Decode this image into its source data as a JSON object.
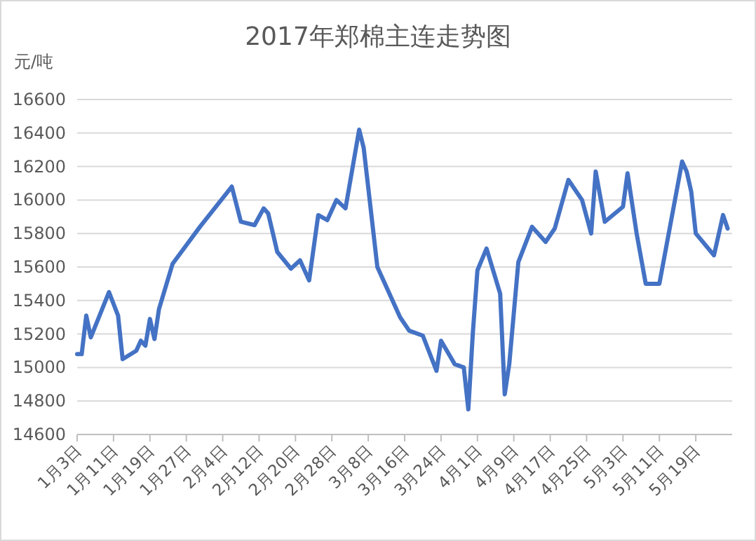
{
  "chart_data": {
    "type": "line",
    "title": "2017年郑棉主连走势图",
    "ylabel": "元/吨",
    "x": [
      "--01-03",
      "--01-04",
      "--01-05",
      "--01-06",
      "--01-10",
      "--01-12",
      "--01-13",
      "--01-16",
      "--01-17",
      "--01-18",
      "--01-19",
      "--01-20",
      "--01-21",
      "--01-24",
      "--01-30",
      "--02-06",
      "--02-08",
      "--02-11",
      "--02-13",
      "--02-14",
      "--02-16",
      "--02-19",
      "--02-21",
      "--02-23",
      "--02-25",
      "--02-27",
      "--03-01",
      "--03-03",
      "--03-06",
      "--03-07",
      "--03-10",
      "--03-15",
      "--03-17",
      "--03-20",
      "--03-23",
      "--03-24",
      "--03-27",
      "--03-29",
      "--03-30",
      "--03-31",
      "--04-01",
      "--04-03",
      "--04-06",
      "--04-07",
      "--04-08",
      "--04-10",
      "--04-13",
      "--04-16",
      "--04-18",
      "--04-21",
      "--04-24",
      "--04-26",
      "--04-27",
      "--04-29",
      "--05-03",
      "--05-04",
      "--05-06",
      "--05-08",
      "--05-11",
      "--05-16",
      "--05-17",
      "--05-18",
      "--05-19",
      "--05-23",
      "--05-25",
      "--05-26"
    ],
    "series": [
      {
        "color": "#4472c4",
        "values": [
          15080,
          15080,
          15310,
          15180,
          15450,
          15310,
          15050,
          15100,
          15160,
          15130,
          15290,
          15170,
          15350,
          15620,
          15840,
          16080,
          15870,
          15850,
          15950,
          15920,
          15690,
          15590,
          15640,
          15520,
          15910,
          15880,
          16000,
          15950,
          16420,
          16310,
          15600,
          15300,
          15220,
          15190,
          14980,
          15160,
          15020,
          15000,
          14750,
          15210,
          15580,
          15710,
          15440,
          14840,
          15020,
          15630,
          15840,
          15750,
          15830,
          16120,
          16000,
          15800,
          16170,
          15870,
          15960,
          16160,
          15800,
          15500,
          15500,
          16230,
          16170,
          16050,
          15800,
          15670,
          15910,
          15830
        ]
      }
    ],
    "xlim": [
      "--01-03",
      "--05-27"
    ],
    "xticks": [
      {
        "value": "--01-03",
        "label": "1月3日"
      },
      {
        "value": "--01-11",
        "label": "1月11日"
      },
      {
        "value": "--01-19",
        "label": "1月19日"
      },
      {
        "value": "--01-27",
        "label": "1月27日"
      },
      {
        "value": "--02-04",
        "label": "2月4日"
      },
      {
        "value": "--02-12",
        "label": "2月12日"
      },
      {
        "value": "--02-20",
        "label": "2月20日"
      },
      {
        "value": "--02-28",
        "label": "2月28日"
      },
      {
        "value": "--03-08",
        "label": "3月8日"
      },
      {
        "value": "--03-16",
        "label": "3月16日"
      },
      {
        "value": "--03-24",
        "label": "3月24日"
      },
      {
        "value": "--04-01",
        "label": "4月1日"
      },
      {
        "value": "--04-09",
        "label": "4月9日"
      },
      {
        "value": "--04-17",
        "label": "4月17日"
      },
      {
        "value": "--04-25",
        "label": "4月25日"
      },
      {
        "value": "--05-03",
        "label": "5月3日"
      },
      {
        "value": "--05-11",
        "label": "5月11日"
      },
      {
        "value": "--05-19",
        "label": "5月19日"
      }
    ],
    "ylim": [
      14600,
      16600
    ],
    "yticks": [
      14600,
      14800,
      15000,
      15200,
      15400,
      15600,
      15800,
      16000,
      16200,
      16400,
      16600
    ],
    "grid": "y",
    "marker": "none",
    "line_style": "solid"
  }
}
